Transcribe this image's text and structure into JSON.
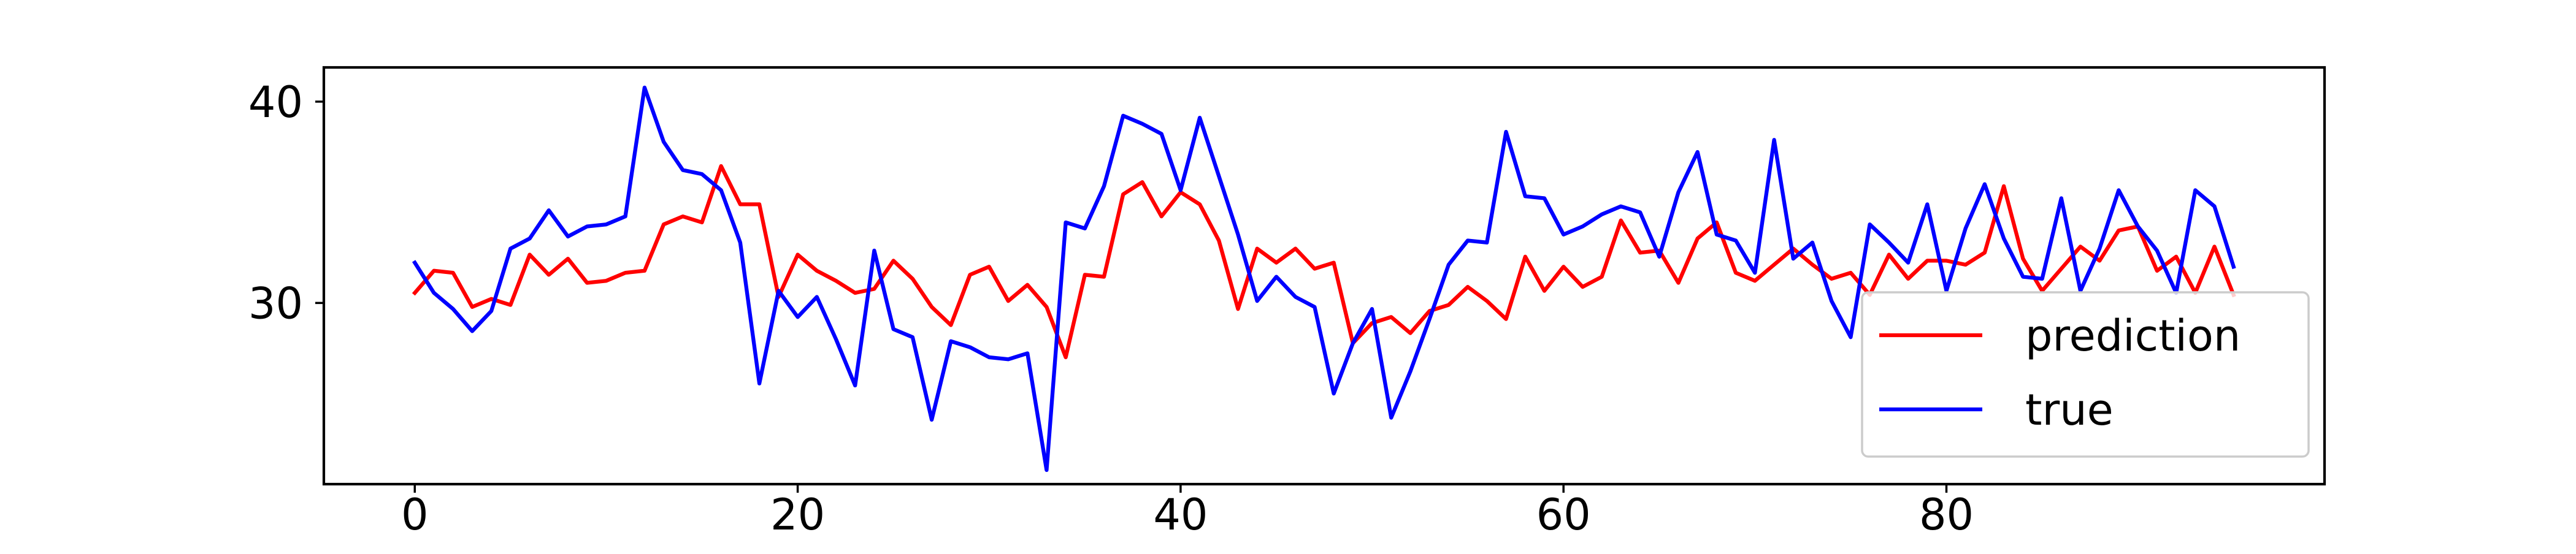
{
  "chart_data": {
    "type": "line",
    "title": "",
    "xlabel": "",
    "ylabel": "",
    "xlim": [
      -4.75,
      99.75
    ],
    "ylim": [
      21,
      41.7
    ],
    "x_ticks": [
      0,
      20,
      40,
      60,
      80
    ],
    "y_ticks": [
      30,
      40
    ],
    "x_tick_labels": [
      "0",
      "20",
      "40",
      "60",
      "80"
    ],
    "y_tick_labels": [
      "30",
      "40"
    ],
    "grid": false,
    "legend_position": "lower-right",
    "series": [
      {
        "name": "prediction",
        "color": "#ff0000",
        "x": [
          0,
          1,
          2,
          3,
          4,
          5,
          6,
          7,
          8,
          9,
          10,
          11,
          12,
          13,
          14,
          15,
          16,
          17,
          18,
          19,
          20,
          21,
          22,
          23,
          24,
          25,
          26,
          27,
          28,
          29,
          30,
          31,
          32,
          33,
          34,
          35,
          36,
          37,
          38,
          39,
          40,
          41,
          42,
          43,
          44,
          45,
          46,
          47,
          48,
          49,
          50,
          51,
          52,
          53,
          54,
          55,
          56,
          57,
          58,
          59,
          60,
          61,
          62,
          63,
          64,
          65,
          66,
          67,
          68,
          69,
          70,
          71,
          72,
          73,
          74,
          75,
          76,
          77,
          78,
          79,
          80,
          81,
          82,
          83,
          84,
          85,
          86,
          87,
          88,
          89,
          90,
          91,
          92,
          93,
          94,
          95
        ],
        "values": [
          30.5,
          31.6,
          31.5,
          29.8,
          30.2,
          29.9,
          32.4,
          31.4,
          32.2,
          31.0,
          31.1,
          31.5,
          31.6,
          33.9,
          34.3,
          34.0,
          36.8,
          34.9,
          34.9,
          30.3,
          32.4,
          31.6,
          31.1,
          30.5,
          30.7,
          32.1,
          31.2,
          29.8,
          28.9,
          31.4,
          31.8,
          30.1,
          30.9,
          29.8,
          27.3,
          31.4,
          31.3,
          35.4,
          36.0,
          34.3,
          35.5,
          34.9,
          33.1,
          29.7,
          32.7,
          32.0,
          32.7,
          31.7,
          32.0,
          28.0,
          29.0,
          29.3,
          28.5,
          29.6,
          29.9,
          30.8,
          30.1,
          29.2,
          32.3,
          30.6,
          31.8,
          30.8,
          31.3,
          34.1,
          32.5,
          32.6,
          31.0,
          33.2,
          34.0,
          31.5,
          31.1,
          31.9,
          32.7,
          31.9,
          31.2,
          31.5,
          30.4,
          32.4,
          31.2,
          32.1,
          32.1,
          31.9,
          32.5,
          35.8,
          32.2,
          30.6,
          31.7,
          32.8,
          32.1,
          33.6,
          33.8,
          31.6,
          32.3,
          30.5,
          32.8,
          30.4
        ]
      },
      {
        "name": "true",
        "color": "#0000ff",
        "x": [
          0,
          1,
          2,
          3,
          4,
          5,
          6,
          7,
          8,
          9,
          10,
          11,
          12,
          13,
          14,
          15,
          16,
          17,
          18,
          19,
          20,
          21,
          22,
          23,
          24,
          25,
          26,
          27,
          28,
          29,
          30,
          31,
          32,
          33,
          34,
          35,
          36,
          37,
          38,
          39,
          40,
          41,
          42,
          43,
          44,
          45,
          46,
          47,
          48,
          49,
          50,
          51,
          52,
          53,
          54,
          55,
          56,
          57,
          58,
          59,
          60,
          61,
          62,
          63,
          64,
          65,
          66,
          67,
          68,
          69,
          70,
          71,
          72,
          73,
          74,
          75,
          76,
          77,
          78,
          79,
          80,
          81,
          82,
          83,
          84,
          85,
          86,
          87,
          88,
          89,
          90,
          91,
          92,
          93,
          94,
          95
        ],
        "values": [
          32.0,
          30.5,
          29.7,
          28.6,
          29.6,
          32.7,
          33.2,
          34.6,
          33.3,
          33.8,
          33.9,
          34.3,
          40.7,
          38.0,
          36.6,
          36.4,
          35.6,
          33.0,
          26.0,
          30.6,
          29.3,
          30.3,
          28.2,
          25.9,
          32.6,
          28.7,
          28.3,
          24.2,
          28.1,
          27.8,
          27.3,
          27.2,
          27.5,
          21.7,
          34.0,
          33.7,
          35.8,
          39.3,
          38.9,
          38.4,
          35.6,
          39.2,
          36.3,
          33.4,
          30.1,
          31.3,
          30.3,
          29.8,
          25.5,
          28.0,
          29.7,
          24.3,
          26.6,
          29.2,
          31.9,
          33.1,
          33.0,
          38.5,
          35.3,
          35.2,
          33.4,
          33.8,
          34.4,
          34.8,
          34.5,
          32.3,
          35.5,
          37.5,
          33.4,
          33.1,
          31.5,
          38.1,
          32.2,
          33.0,
          30.1,
          28.3,
          33.9,
          33.0,
          32.0,
          34.9,
          30.6,
          33.7,
          35.9,
          33.2,
          31.3,
          31.2,
          35.2,
          30.6,
          32.7,
          35.6,
          33.8,
          32.6,
          30.5,
          35.6,
          34.8,
          31.8
        ]
      }
    ]
  }
}
